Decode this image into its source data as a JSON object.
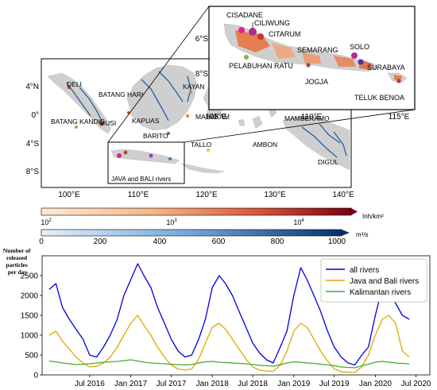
{
  "map": {
    "lat_ticks": [
      "4°N",
      "0°",
      "4°S",
      "8°S"
    ],
    "lon_ticks": [
      "100°E",
      "110°E",
      "120°E",
      "130°E",
      "140°E"
    ],
    "river_labels": [
      "DELI",
      "BATANG HARI",
      "BATANG KANDIS",
      "MUSI",
      "KAPUAS",
      "KAYAN",
      "MAHAKAM",
      "BARITO",
      "TALLO",
      "AMBON",
      "MAMBERAMO",
      "DIGUL",
      "JAVA and BALI rivers"
    ],
    "inset": {
      "lat_ticks": [
        "6°S",
        "8°S"
      ],
      "lon_ticks": [
        "105°E",
        "110°E",
        "115°E"
      ],
      "labels": [
        "CISADANE",
        "CILIWUNG",
        "CITARUM",
        "SOLO",
        "SEMARANG",
        "PELABUHAN RATU",
        "SURABAYA",
        "JOGJA",
        "TELUK BENOA"
      ]
    },
    "colorbars": {
      "pop": {
        "ticks": [
          "10",
          "10",
          "10"
        ],
        "exps": [
          "2",
          "3",
          "4"
        ],
        "unit": "Inh/km²"
      },
      "flow": {
        "ticks": [
          "0",
          "200",
          "400",
          "600",
          "800",
          "1000"
        ],
        "unit": "m³/s"
      }
    }
  },
  "colors": {
    "all": "#0000dd",
    "java": "#ddaa00",
    "kalimantan": "#44aa33"
  },
  "chart_data": {
    "type": "line",
    "ylabel": "Number of released particles per day",
    "ylim": [
      0,
      3000
    ],
    "yticks": [
      0,
      500,
      1000,
      1500,
      2000,
      2500
    ],
    "xlim": [
      "2015-12-01",
      "2020-09-01"
    ],
    "xticks": [
      {
        "date": "2016-07-01",
        "label": "Jul 2016"
      },
      {
        "date": "2017-01-01",
        "label": "Jan 2017"
      },
      {
        "date": "2017-07-01",
        "label": "Jul 2017"
      },
      {
        "date": "2018-01-01",
        "label": "Jan 2018"
      },
      {
        "date": "2018-07-01",
        "label": "Jul 2018"
      },
      {
        "date": "2019-01-01",
        "label": "Jan 2019"
      },
      {
        "date": "2019-07-01",
        "label": "Jul 2019"
      },
      {
        "date": "2020-01-01",
        "label": "Jan 2020"
      },
      {
        "date": "2020-07-01",
        "label": "Jul 2020"
      }
    ],
    "legend": "top-right",
    "series": [
      {
        "name": "all rivers",
        "key": "all",
        "x": [
          "2016-01-01",
          "2016-02-01",
          "2016-03-01",
          "2016-04-01",
          "2016-05-01",
          "2016-06-01",
          "2016-07-01",
          "2016-08-01",
          "2016-09-01",
          "2016-10-01",
          "2016-11-01",
          "2016-12-01",
          "2017-01-01",
          "2017-02-01",
          "2017-03-01",
          "2017-04-01",
          "2017-05-01",
          "2017-06-01",
          "2017-07-01",
          "2017-08-01",
          "2017-09-01",
          "2017-10-01",
          "2017-11-01",
          "2017-12-01",
          "2018-01-01",
          "2018-02-01",
          "2018-03-01",
          "2018-04-01",
          "2018-05-01",
          "2018-06-01",
          "2018-07-01",
          "2018-08-01",
          "2018-09-01",
          "2018-10-01",
          "2018-11-01",
          "2018-12-01",
          "2019-01-01",
          "2019-02-01",
          "2019-03-01",
          "2019-04-01",
          "2019-05-01",
          "2019-06-01",
          "2019-07-01",
          "2019-08-01",
          "2019-09-01",
          "2019-10-01",
          "2019-11-01",
          "2019-12-01",
          "2020-01-01",
          "2020-02-01",
          "2020-03-01",
          "2020-04-01",
          "2020-05-01",
          "2020-06-01"
        ],
        "y": [
          2150,
          2300,
          1700,
          1400,
          1150,
          900,
          500,
          450,
          700,
          1000,
          1400,
          2000,
          2400,
          2800,
          2500,
          2200,
          1700,
          1300,
          900,
          600,
          450,
          500,
          900,
          1400,
          2200,
          2500,
          2300,
          2000,
          1600,
          1200,
          800,
          550,
          380,
          300,
          700,
          1100,
          2000,
          2700,
          2400,
          2000,
          1600,
          1100,
          700,
          450,
          300,
          250,
          500,
          700,
          1500,
          2200,
          2100,
          1800,
          1500,
          1400
        ]
      },
      {
        "name": "Java and Bali rivers",
        "key": "java",
        "x": [
          "2016-01-01",
          "2016-02-01",
          "2016-03-01",
          "2016-04-01",
          "2016-05-01",
          "2016-06-01",
          "2016-07-01",
          "2016-08-01",
          "2016-09-01",
          "2016-10-01",
          "2016-11-01",
          "2016-12-01",
          "2017-01-01",
          "2017-02-01",
          "2017-03-01",
          "2017-04-01",
          "2017-05-01",
          "2017-06-01",
          "2017-07-01",
          "2017-08-01",
          "2017-09-01",
          "2017-10-01",
          "2017-11-01",
          "2017-12-01",
          "2018-01-01",
          "2018-02-01",
          "2018-03-01",
          "2018-04-01",
          "2018-05-01",
          "2018-06-01",
          "2018-07-01",
          "2018-08-01",
          "2018-09-01",
          "2018-10-01",
          "2018-11-01",
          "2018-12-01",
          "2019-01-01",
          "2019-02-01",
          "2019-03-01",
          "2019-04-01",
          "2019-05-01",
          "2019-06-01",
          "2019-07-01",
          "2019-08-01",
          "2019-09-01",
          "2019-10-01",
          "2019-11-01",
          "2019-12-01",
          "2020-01-01",
          "2020-02-01",
          "2020-03-01",
          "2020-04-01",
          "2020-05-01",
          "2020-06-01"
        ],
        "y": [
          1000,
          1100,
          850,
          650,
          450,
          300,
          200,
          220,
          300,
          450,
          700,
          1000,
          1300,
          1500,
          1250,
          1000,
          700,
          450,
          250,
          150,
          120,
          150,
          400,
          800,
          1200,
          1300,
          1150,
          900,
          650,
          400,
          200,
          120,
          100,
          90,
          250,
          600,
          1100,
          1300,
          1200,
          900,
          600,
          350,
          150,
          80,
          70,
          60,
          200,
          500,
          1000,
          1400,
          1500,
          1300,
          600,
          450
        ]
      },
      {
        "name": "Kalimantan rivers",
        "key": "kalimantan",
        "x": [
          "2016-01-01",
          "2016-02-01",
          "2016-03-01",
          "2016-04-01",
          "2016-05-01",
          "2016-06-01",
          "2016-07-01",
          "2016-08-01",
          "2016-09-01",
          "2016-10-01",
          "2016-11-01",
          "2016-12-01",
          "2017-01-01",
          "2017-02-01",
          "2017-03-01",
          "2017-04-01",
          "2017-05-01",
          "2017-06-01",
          "2017-07-01",
          "2017-08-01",
          "2017-09-01",
          "2017-10-01",
          "2017-11-01",
          "2017-12-01",
          "2018-01-01",
          "2018-02-01",
          "2018-03-01",
          "2018-04-01",
          "2018-05-01",
          "2018-06-01",
          "2018-07-01",
          "2018-08-01",
          "2018-09-01",
          "2018-10-01",
          "2018-11-01",
          "2018-12-01",
          "2019-01-01",
          "2019-02-01",
          "2019-03-01",
          "2019-04-01",
          "2019-05-01",
          "2019-06-01",
          "2019-07-01",
          "2019-08-01",
          "2019-09-01",
          "2019-10-01",
          "2019-11-01",
          "2019-12-01",
          "2020-01-01",
          "2020-02-01",
          "2020-03-01",
          "2020-04-01",
          "2020-05-01",
          "2020-06-01"
        ],
        "y": [
          350,
          330,
          300,
          280,
          260,
          270,
          280,
          300,
          320,
          330,
          340,
          360,
          380,
          350,
          320,
          300,
          290,
          280,
          270,
          260,
          250,
          260,
          300,
          330,
          340,
          320,
          310,
          300,
          290,
          280,
          260,
          240,
          230,
          220,
          260,
          300,
          330,
          320,
          300,
          290,
          270,
          250,
          230,
          200,
          190,
          180,
          230,
          270,
          320,
          340,
          320,
          300,
          290,
          280
        ]
      }
    ]
  }
}
